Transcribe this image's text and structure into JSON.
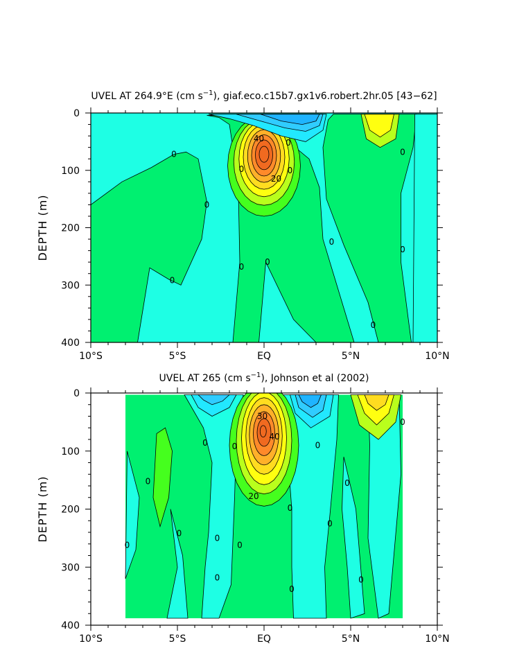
{
  "chart_data": [
    {
      "type": "contour",
      "title": "UVEL AT 264.9°E (cm s⁻¹), giaf.eco.c15b7.gx1v6.robert.2hr.05 [43-62]",
      "title_parts": {
        "pre": "UVEL AT 264.9°E (cm s",
        "sup": "−1",
        "post": "), giaf.eco.c15b7.gx1v6.robert.2hr.05 [43−62]"
      },
      "ylabel": "DEPTH (m)",
      "xlim": [
        -10,
        10
      ],
      "ylim": [
        400,
        0
      ],
      "x_ticks": [
        -10,
        -5,
        0,
        5,
        10
      ],
      "x_tick_labels": [
        "10°S",
        "5°S",
        "EQ",
        "5°N",
        "10°N"
      ],
      "y_ticks": [
        0,
        100,
        200,
        300,
        400
      ],
      "y_tick_labels": [
        "0",
        "100",
        "200",
        "300",
        "400"
      ],
      "data_xlim": [
        -10,
        10
      ],
      "max_core": {
        "lat": 0,
        "depth": 75,
        "value": 50
      },
      "contour_labels": [
        {
          "lat": -5.2,
          "depth": 72,
          "text": "0"
        },
        {
          "lat": -3.3,
          "depth": 160,
          "text": "0"
        },
        {
          "lat": -5.3,
          "depth": 292,
          "text": "0"
        },
        {
          "lat": -1.3,
          "depth": 98,
          "text": "0"
        },
        {
          "lat": -1.3,
          "depth": 268,
          "text": "0"
        },
        {
          "lat": 0.2,
          "depth": 260,
          "text": "0"
        },
        {
          "lat": -0.3,
          "depth": 45,
          "text": "40"
        },
        {
          "lat": 0.7,
          "depth": 115,
          "text": "20"
        },
        {
          "lat": 1.5,
          "depth": 100,
          "text": "0"
        },
        {
          "lat": 1.4,
          "depth": 52,
          "text": "0"
        },
        {
          "lat": 3.9,
          "depth": 225,
          "text": "0"
        },
        {
          "lat": 6.3,
          "depth": 370,
          "text": "0"
        },
        {
          "lat": 8.0,
          "depth": 68,
          "text": "0"
        },
        {
          "lat": 8.0,
          "depth": 238,
          "text": "0"
        }
      ]
    },
    {
      "type": "contour",
      "title": "UVEL AT 265 (cm s⁻¹), Johnson et al (2002)",
      "title_parts": {
        "pre": "UVEL AT 265 (cm s",
        "sup": "−1",
        "post": "), Johnson et al (2002)"
      },
      "ylabel": "DEPTH (m)",
      "xlim": [
        -10,
        10
      ],
      "ylim": [
        400,
        0
      ],
      "x_ticks": [
        -10,
        -5,
        0,
        5,
        10
      ],
      "x_tick_labels": [
        "10°S",
        "5°S",
        "EQ",
        "5°N",
        "10°N"
      ],
      "y_ticks": [
        0,
        100,
        200,
        300,
        400
      ],
      "y_tick_labels": [
        "0",
        "100",
        "200",
        "300",
        "400"
      ],
      "data_xlim": [
        -8,
        8
      ],
      "max_core": {
        "lat": 0,
        "depth": 68,
        "value": 50
      },
      "contour_labels": [
        {
          "lat": -7.9,
          "depth": 262,
          "text": "0"
        },
        {
          "lat": -6.7,
          "depth": 152,
          "text": "0"
        },
        {
          "lat": -4.9,
          "depth": 242,
          "text": "0"
        },
        {
          "lat": -3.4,
          "depth": 86,
          "text": "0"
        },
        {
          "lat": -2.7,
          "depth": 250,
          "text": "0"
        },
        {
          "lat": -2.7,
          "depth": 318,
          "text": "0"
        },
        {
          "lat": -1.7,
          "depth": 92,
          "text": "0"
        },
        {
          "lat": -1.4,
          "depth": 262,
          "text": "0"
        },
        {
          "lat": -0.1,
          "depth": 40,
          "text": "30"
        },
        {
          "lat": 0.6,
          "depth": 75,
          "text": "40"
        },
        {
          "lat": -0.6,
          "depth": 178,
          "text": "20"
        },
        {
          "lat": 1.5,
          "depth": 198,
          "text": "0"
        },
        {
          "lat": 1.6,
          "depth": 338,
          "text": "0"
        },
        {
          "lat": 3.1,
          "depth": 90,
          "text": "0"
        },
        {
          "lat": 3.8,
          "depth": 225,
          "text": "0"
        },
        {
          "lat": 4.8,
          "depth": 155,
          "text": "0"
        },
        {
          "lat": 5.6,
          "depth": 322,
          "text": "0"
        },
        {
          "lat": 8.0,
          "depth": 50,
          "text": "0"
        }
      ]
    }
  ]
}
